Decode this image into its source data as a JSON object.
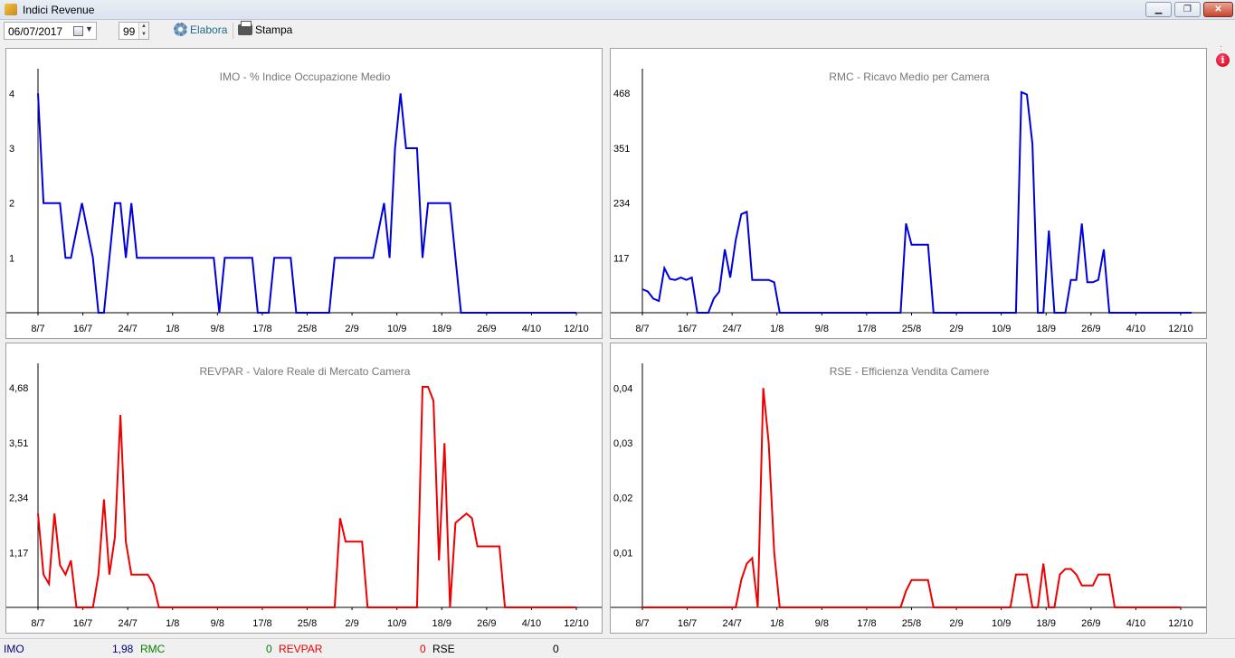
{
  "window": {
    "title": "Indici Revenue",
    "minimize": "▁",
    "restore": "❐",
    "close": "✕"
  },
  "toolbar": {
    "date": "06/07/2017",
    "days": "99",
    "elabora_label": "Elabora",
    "stampa_label": "Stampa"
  },
  "colors": {
    "blue": "#0000dd",
    "red": "#ee0000",
    "green": "#008000",
    "navy": "#000080"
  },
  "status": {
    "imo_label": "IMO",
    "imo_value": "1,98",
    "rmc_label": "RMC",
    "rmc_value": "0",
    "revpar_label": "REVPAR",
    "revpar_value": "0",
    "rse_label": "RSE",
    "rse_value": "0"
  },
  "chart_data": [
    {
      "id": "imo",
      "type": "line",
      "title": "IMO - % Indice Occupazione Medio",
      "color": "#0000dd",
      "ylim": [
        0,
        4.45
      ],
      "yticks": [
        "1",
        "2",
        "3",
        "4"
      ],
      "ytick_values": [
        1,
        2,
        3,
        4
      ],
      "xticks": [
        "8/7",
        "16/7",
        "24/7",
        "1/8",
        "9/8",
        "17/8",
        "25/8",
        "2/9",
        "10/9",
        "18/9",
        "26/9",
        "4/10",
        "12/10"
      ],
      "x_days": 99,
      "values": [
        4,
        2,
        2,
        2,
        2,
        1,
        1,
        1.5,
        2,
        1.5,
        1,
        0,
        0,
        1,
        2,
        2,
        1,
        2,
        1,
        1,
        1,
        1,
        1,
        1,
        1,
        1,
        1,
        1,
        1,
        1,
        1,
        1,
        1,
        0,
        1,
        1,
        1,
        1,
        1,
        1,
        0,
        0,
        0,
        1,
        1,
        1,
        1,
        0,
        0,
        0,
        0,
        0,
        0,
        0,
        1,
        1,
        1,
        1,
        1,
        1,
        1,
        1,
        1.5,
        2,
        1,
        3,
        4,
        3,
        3,
        3,
        1,
        2,
        2,
        2,
        2,
        2,
        1,
        0,
        0,
        0,
        0,
        0,
        0,
        0,
        0,
        0,
        0,
        0,
        0,
        0,
        0,
        0,
        0,
        0,
        0,
        0,
        0,
        0,
        0
      ]
    },
    {
      "id": "rmc",
      "type": "line",
      "title": "RMC - Ricavo Medio per Camera",
      "color": "#0000dd",
      "ylim": [
        0,
        520
      ],
      "yticks": [
        "117",
        "234",
        "351",
        "468"
      ],
      "ytick_values": [
        117,
        234,
        351,
        468
      ],
      "xticks": [
        "8/7",
        "16/7",
        "24/7",
        "1/8",
        "9/8",
        "17/8",
        "25/8",
        "2/9",
        "10/9",
        "18/9",
        "26/9",
        "4/10",
        "12/10"
      ],
      "x_days": 99,
      "values": [
        50,
        45,
        30,
        25,
        95,
        72,
        70,
        75,
        70,
        75,
        0,
        0,
        0,
        30,
        45,
        135,
        75,
        155,
        210,
        215,
        70,
        70,
        70,
        70,
        65,
        0,
        0,
        0,
        0,
        0,
        0,
        0,
        0,
        0,
        0,
        0,
        0,
        0,
        0,
        0,
        0,
        0,
        0,
        0,
        0,
        0,
        0,
        0,
        190,
        145,
        145,
        145,
        145,
        0,
        0,
        0,
        0,
        0,
        0,
        0,
        0,
        0,
        0,
        0,
        0,
        0,
        0,
        0,
        0,
        470,
        465,
        360,
        0,
        0,
        175,
        0,
        0,
        0,
        70,
        70,
        190,
        65,
        65,
        70,
        135,
        0,
        0,
        0,
        0,
        0,
        0,
        0,
        0,
        0,
        0,
        0,
        0,
        0,
        0,
        0,
        0
      ]
    },
    {
      "id": "revpar",
      "type": "line",
      "title": "REVPAR - Valore Reale di Mercato Camera",
      "color": "#ee0000",
      "ylim": [
        0,
        5.2
      ],
      "yticks": [
        "1,17",
        "2,34",
        "3,51",
        "4,68"
      ],
      "ytick_values": [
        1.17,
        2.34,
        3.51,
        4.68
      ],
      "xticks": [
        "8/7",
        "16/7",
        "24/7",
        "1/8",
        "9/8",
        "17/8",
        "25/8",
        "2/9",
        "10/9",
        "18/9",
        "26/9",
        "4/10",
        "12/10"
      ],
      "x_days": 99,
      "values": [
        2,
        0.7,
        0.5,
        2,
        0.9,
        0.7,
        1,
        0,
        0,
        0,
        0,
        0.7,
        2.3,
        0.7,
        1.5,
        4.1,
        1.4,
        0.7,
        0.7,
        0.7,
        0.7,
        0.5,
        0,
        0,
        0,
        0,
        0,
        0,
        0,
        0,
        0,
        0,
        0,
        0,
        0,
        0,
        0,
        0,
        0,
        0,
        0,
        0,
        0,
        0,
        0,
        0,
        0,
        0,
        0,
        0,
        0,
        0,
        0,
        0,
        0,
        1.9,
        1.4,
        1.4,
        1.4,
        1.4,
        0,
        0,
        0,
        0,
        0,
        0,
        0,
        0,
        0,
        0,
        4.7,
        4.7,
        4.4,
        1,
        3.5,
        0,
        1.8,
        1.9,
        2,
        1.9,
        1.3,
        1.3,
        1.3,
        1.3,
        1.3,
        0,
        0,
        0,
        0,
        0,
        0,
        0,
        0,
        0,
        0,
        0,
        0,
        0,
        0
      ]
    },
    {
      "id": "rse",
      "type": "line",
      "title": "RSE - Efficienza Vendita Camere",
      "color": "#ee0000",
      "ylim": [
        0,
        0.0445
      ],
      "yticks": [
        "0,01",
        "0,02",
        "0,03",
        "0,04"
      ],
      "ytick_values": [
        0.01,
        0.02,
        0.03,
        0.04
      ],
      "xticks": [
        "8/7",
        "16/7",
        "24/7",
        "1/8",
        "9/8",
        "17/8",
        "25/8",
        "2/9",
        "10/9",
        "18/9",
        "26/9",
        "4/10",
        "12/10"
      ],
      "x_days": 99,
      "values": [
        0,
        0,
        0,
        0,
        0,
        0,
        0,
        0,
        0,
        0,
        0,
        0,
        0,
        0,
        0,
        0,
        0,
        0,
        0.005,
        0.008,
        0.009,
        0,
        0.04,
        0.03,
        0.01,
        0,
        0,
        0,
        0,
        0,
        0,
        0,
        0,
        0,
        0,
        0,
        0,
        0,
        0,
        0,
        0,
        0,
        0,
        0,
        0,
        0,
        0,
        0,
        0.003,
        0.005,
        0.005,
        0.005,
        0.005,
        0,
        0,
        0,
        0,
        0,
        0,
        0,
        0,
        0,
        0,
        0,
        0,
        0,
        0,
        0,
        0.006,
        0.006,
        0.006,
        0,
        0,
        0.008,
        0,
        0,
        0.006,
        0.007,
        0.007,
        0.006,
        0.004,
        0.004,
        0.004,
        0.006,
        0.006,
        0.006,
        0,
        0,
        0,
        0,
        0,
        0,
        0,
        0,
        0,
        0,
        0,
        0,
        0
      ]
    }
  ]
}
